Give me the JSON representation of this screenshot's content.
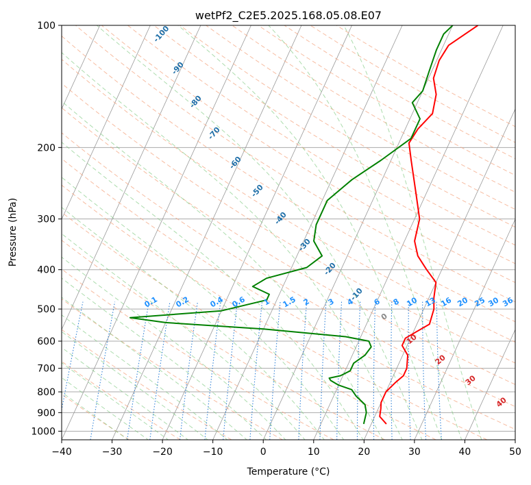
{
  "chart_data": {
    "type": "line",
    "title": "wetPf2_C2E5.2025.168.05.08.E07",
    "xlabel": "Temperature (°C)",
    "ylabel": "Pressure (hPa)",
    "xlim": [
      -40,
      50
    ],
    "ylim": [
      1050,
      100
    ],
    "y_scale": "log",
    "grid": true,
    "x_ticks": [
      -40,
      -30,
      -20,
      -10,
      0,
      10,
      20,
      30,
      40,
      50
    ],
    "y_ticks": [
      100,
      200,
      300,
      400,
      500,
      600,
      700,
      800,
      900,
      1000
    ],
    "series": [
      {
        "color": "#ff0000",
        "points": [
          [
            23.0,
            960
          ],
          [
            21.0,
            920
          ],
          [
            20.5,
            880
          ],
          [
            20.0,
            850
          ],
          [
            20.0,
            800
          ],
          [
            21.0,
            760
          ],
          [
            22.0,
            730
          ],
          [
            22.0,
            700
          ],
          [
            21.0,
            650
          ],
          [
            19.0,
            615
          ],
          [
            19.0,
            590
          ],
          [
            20.5,
            570
          ],
          [
            22.5,
            545
          ],
          [
            22.0,
            500
          ],
          [
            21.0,
            470
          ],
          [
            20.0,
            430
          ],
          [
            17.0,
            400
          ],
          [
            14.0,
            370
          ],
          [
            12.0,
            340
          ],
          [
            11.0,
            300
          ],
          [
            8.0,
            260
          ],
          [
            4.0,
            215
          ],
          [
            2.0,
            195
          ],
          [
            2.5,
            180
          ],
          [
            4.0,
            165
          ],
          [
            3.0,
            148
          ],
          [
            1.0,
            135
          ],
          [
            0.5,
            122
          ],
          [
            1.0,
            112
          ],
          [
            5.0,
            100
          ]
        ]
      },
      {
        "color": "#008000",
        "points": [
          [
            18.5,
            960
          ],
          [
            18.0,
            900
          ],
          [
            17.0,
            860
          ],
          [
            14.5,
            820
          ],
          [
            13.0,
            790
          ],
          [
            10.0,
            770
          ],
          [
            8.0,
            750
          ],
          [
            7.5,
            740
          ],
          [
            9.5,
            730
          ],
          [
            11.0,
            710
          ],
          [
            11.0,
            680
          ],
          [
            12.5,
            650
          ],
          [
            13.0,
            620
          ],
          [
            12.0,
            600
          ],
          [
            7.0,
            585
          ],
          [
            -10.0,
            560
          ],
          [
            -30.0,
            540
          ],
          [
            -37.5,
            525
          ],
          [
            -20.0,
            505
          ],
          [
            -12.0,
            475
          ],
          [
            -12.0,
            460
          ],
          [
            -16.0,
            440
          ],
          [
            -14.0,
            420
          ],
          [
            -7.0,
            395
          ],
          [
            -5.0,
            370
          ],
          [
            -8.0,
            340
          ],
          [
            -9.0,
            310
          ],
          [
            -9.0,
            270
          ],
          [
            -6.0,
            240
          ],
          [
            -2.0,
            215
          ],
          [
            2.0,
            190
          ],
          [
            2.0,
            170
          ],
          [
            -1.0,
            155
          ],
          [
            0.0,
            145
          ],
          [
            -0.5,
            130
          ],
          [
            -1.0,
            115
          ],
          [
            -1.0,
            105
          ],
          [
            0.0,
            100
          ]
        ]
      }
    ],
    "dry_adiabat_labels": [
      "-100",
      "-90",
      "-80",
      "-70",
      "-60",
      "-50",
      "-40",
      "-30",
      "-20",
      "-10"
    ],
    "mixing_ratio_labels": [
      "0.1",
      "0.2",
      "0.4",
      "0.6",
      "1",
      "1.5",
      "2",
      "3",
      "4",
      "6",
      "8",
      "10",
      "13",
      "16",
      "20",
      "25",
      "30",
      "36"
    ],
    "moist_adiabat_labels": [
      "0",
      "10",
      "20",
      "30",
      "40"
    ],
    "colors": {
      "temperature": "#ff0000",
      "dewpoint": "#008000",
      "isotherm": "#999999",
      "dry_adiabat": "#f4a582",
      "moist_adiabat": "#74c476",
      "mixing_ratio": "#2c7fd6",
      "dry_label": "#1f6fa8",
      "mixing_label": "#1e90ff",
      "moist_label": "#d62728"
    }
  }
}
